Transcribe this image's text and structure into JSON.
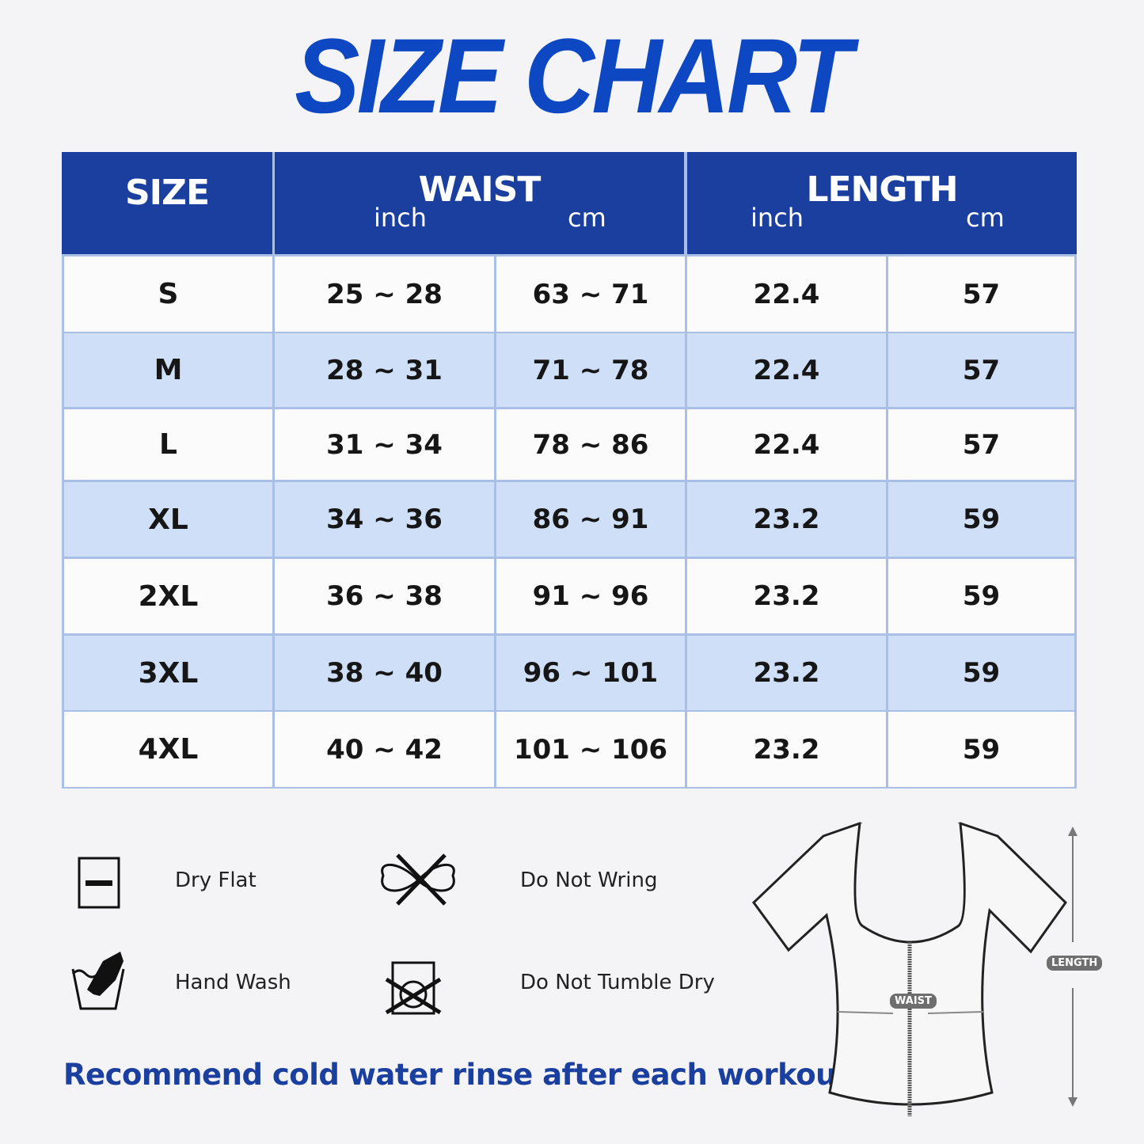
{
  "title": "SIZE CHART",
  "table": {
    "headers": {
      "size": "SIZE",
      "waist": "WAIST",
      "length": "LENGTH",
      "waist_inch": "inch",
      "waist_cm": "cm",
      "length_inch": "inch",
      "length_cm": "cm"
    },
    "rows": [
      {
        "size": "S",
        "waist_inch": "25 ~ 28",
        "waist_cm": "63 ~ 71",
        "length_inch": "22.4",
        "length_cm": "57"
      },
      {
        "size": "M",
        "waist_inch": "28 ~ 31",
        "waist_cm": "71 ~ 78",
        "length_inch": "22.4",
        "length_cm": "57"
      },
      {
        "size": "L",
        "waist_inch": "31 ~ 34",
        "waist_cm": "78 ~ 86",
        "length_inch": "22.4",
        "length_cm": "57"
      },
      {
        "size": "XL",
        "waist_inch": "34 ~ 36",
        "waist_cm": "86 ~ 91",
        "length_inch": "23.2",
        "length_cm": "59"
      },
      {
        "size": "2XL",
        "waist_inch": "36 ~ 38",
        "waist_cm": "91 ~ 96",
        "length_inch": "23.2",
        "length_cm": "59"
      },
      {
        "size": "3XL",
        "waist_inch": "38 ~ 40",
        "waist_cm": "96 ~ 101",
        "length_inch": "23.2",
        "length_cm": "59"
      },
      {
        "size": "4XL",
        "waist_inch": "40 ~ 42",
        "waist_cm": "101 ~ 106",
        "length_inch": "23.2",
        "length_cm": "59"
      }
    ]
  },
  "care": [
    {
      "icon": "dry-flat-icon",
      "label": "Dry Flat"
    },
    {
      "icon": "do-not-wring-icon",
      "label": "Do Not Wring"
    },
    {
      "icon": "hand-wash-icon",
      "label": "Hand Wash"
    },
    {
      "icon": "do-not-tumble-dry-icon",
      "label": "Do Not Tumble Dry"
    }
  ],
  "note": "Recommend cold water rinse after each workout.",
  "diagram": {
    "waist_label": "WAIST",
    "length_label": "LENGTH"
  },
  "colors": {
    "header": "#1a3f9f",
    "title": "#0d47c2",
    "row_alt": "#cfdff8",
    "row": "#fbfbfc"
  }
}
